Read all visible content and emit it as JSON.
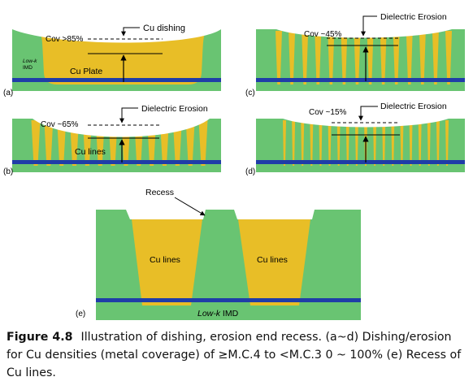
{
  "colors": {
    "dielectric": "#69c472",
    "copper": "#e8be27",
    "barrier": "#1f3da8",
    "edge": "#2a4a9a",
    "caption_text": "#111111"
  },
  "panels": {
    "a": {
      "letter": "(a)",
      "coverage": "Cov >85%",
      "annotation": "Cu dishing",
      "side_label_1": "Low-k",
      "side_label_2": "IMD",
      "fill_label": "Cu Plate"
    },
    "b": {
      "letter": "(b)",
      "coverage": "Cov ~65%",
      "annotation": "Dielectric Erosion",
      "fill_label": "Cu lines"
    },
    "c": {
      "letter": "(c)",
      "coverage": "Cov ~45%",
      "annotation": "Dielectric Erosion"
    },
    "d": {
      "letter": "(d)",
      "coverage": "Cov ~15%",
      "annotation": "Dielectric Erosion"
    },
    "e": {
      "letter": "(e)",
      "annotation": "Recess",
      "left_line_label": "Cu lines",
      "right_line_label": "Cu lines",
      "dielectric_label_italic": "Low-k",
      "dielectric_label_rest": " IMD"
    }
  },
  "caption": {
    "label": "Figure 4.8",
    "text": "Illustration of dishing, erosion end recess. (a~d) Dishing/erosion for Cu densities (metal coverage) of ≥M.C.4 to <M.C.3 0 ~ 100% (e) Recess of Cu lines."
  }
}
